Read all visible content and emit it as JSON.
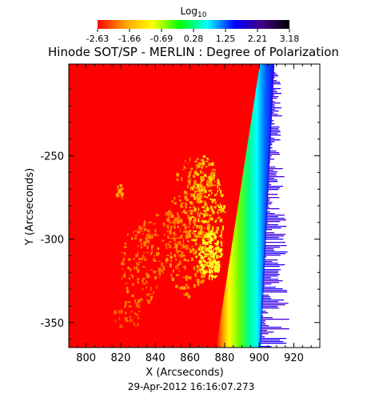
{
  "chart_data": {
    "type": "heatmap",
    "title": "Hinode SOT/SP - MERLIN : Degree of Polarization",
    "colorbar": {
      "label": "Log",
      "label_subscript": "10",
      "min": -2.63,
      "max": 3.18,
      "ticks": [
        "-2.63",
        "-1.66",
        "-0.69",
        "0.28",
        "1.25",
        "2.21",
        "3.18"
      ],
      "colormap": [
        "#ff0000",
        "#ffa000",
        "#ffff00",
        "#00ff00",
        "#00ffff",
        "#0000ff",
        "#400080",
        "#000000"
      ]
    },
    "xlabel": "X (Arcseconds)",
    "ylabel": "Y (Arcseconds)",
    "xlim": [
      790,
      935
    ],
    "ylim": [
      -365,
      -195
    ],
    "xticks": [
      800,
      820,
      840,
      860,
      880,
      900,
      920
    ],
    "yticks": [
      -250,
      -300,
      -350
    ],
    "limb_x_at_top": 905,
    "limb_x_at_bottom": 876,
    "background_value": -2.63,
    "grid": false
  },
  "footer": {
    "timestamp": "29-Apr-2012 16:16:07.273"
  }
}
